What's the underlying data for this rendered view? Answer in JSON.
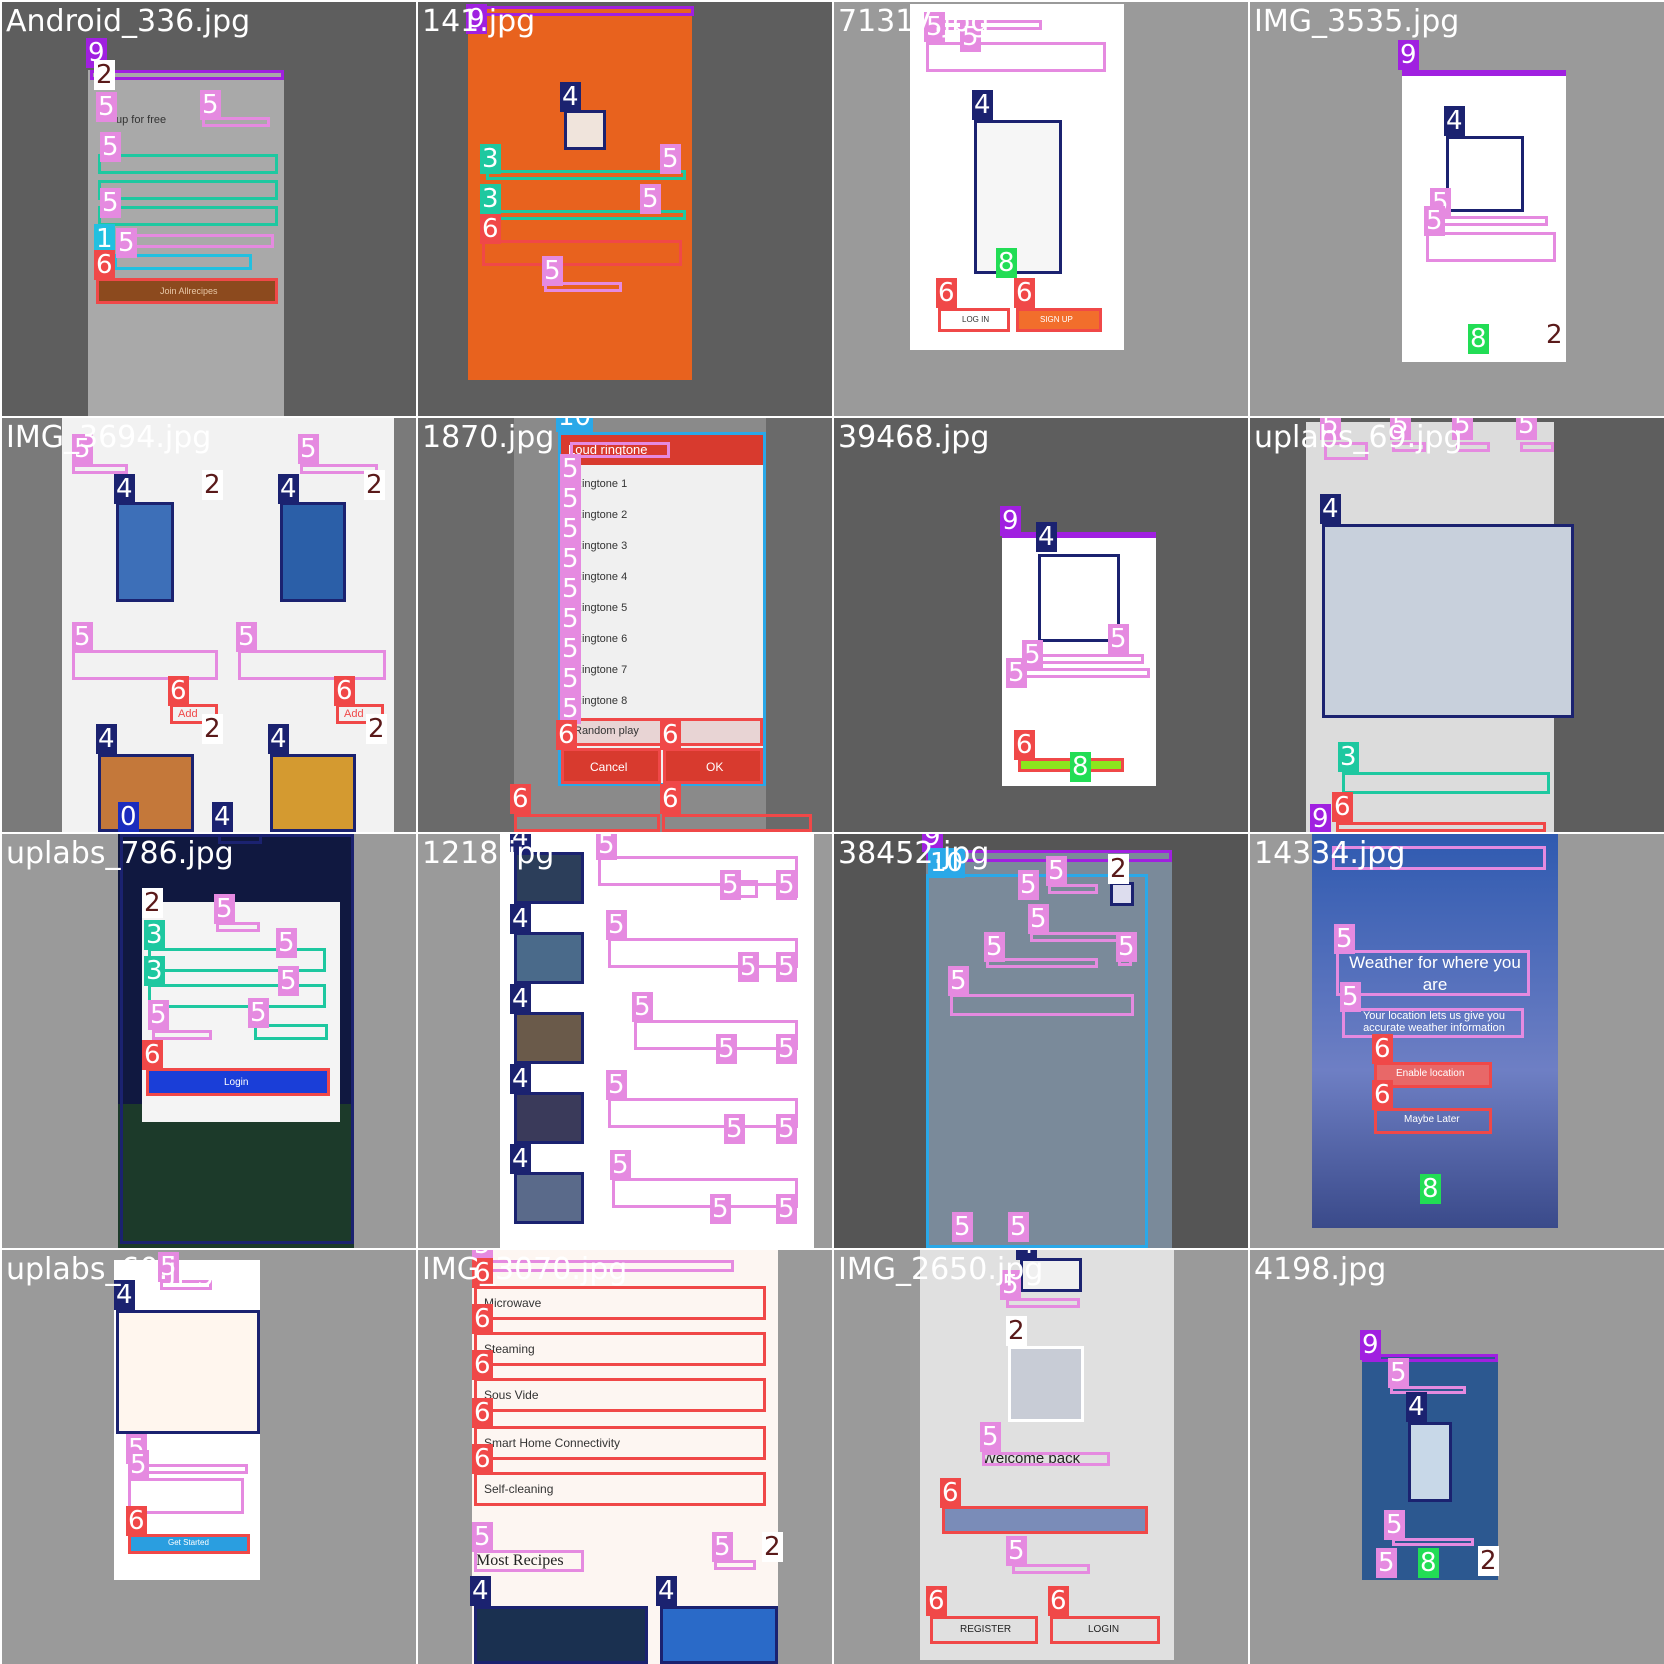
{
  "tiles": [
    {
      "title": "Android_336.jpg",
      "texts": [
        "up for free",
        "Join Allrecipes"
      ]
    },
    {
      "title": "141.jpg",
      "texts": []
    },
    {
      "title": "71317.jpg",
      "texts": [
        "LOG IN",
        "SIGN UP"
      ]
    },
    {
      "title": "IMG_3535.jpg",
      "texts": []
    },
    {
      "title": "IMG_3694.jpg",
      "texts": [
        "Add",
        "Add"
      ]
    },
    {
      "title": "1870.jpg",
      "texts": [
        "Loud ringtone",
        "Ringtone 1",
        "Ringtone 2",
        "Ringtone 3",
        "Ringtone 4",
        "Ringtone 5",
        "Ringtone 6",
        "Ringtone 7",
        "Ringtone 8",
        "Random play",
        "Cancel",
        "OK"
      ]
    },
    {
      "title": "39468.jpg",
      "texts": []
    },
    {
      "title": "uplabs_69.jpg",
      "texts": []
    },
    {
      "title": "uplabs_786.jpg",
      "texts": [
        "Login"
      ]
    },
    {
      "title": "1218.jpg",
      "texts": []
    },
    {
      "title": "38452.jpg",
      "texts": []
    },
    {
      "title": "14334.jpg",
      "texts": [
        "Weather for where you are",
        "Your location lets us give you accurate weather information",
        "Enable location",
        "Maybe Later"
      ]
    },
    {
      "title": "uplabs_60.jpg",
      "texts": [
        "Get Started"
      ]
    },
    {
      "title": "IMG_3070.jpg",
      "texts": [
        "Microwave",
        "Steaming",
        "Sous Vide",
        "Smart Home Connectivity",
        "Self-cleaning",
        "Most Recipes"
      ]
    },
    {
      "title": "IMG_2650.jpg",
      "texts": [
        "Welcome back",
        "REGISTER",
        "LOGIN"
      ]
    },
    {
      "title": "4198.jpg",
      "texts": []
    }
  ],
  "class_labels": [
    "0",
    "1",
    "2",
    "3",
    "4",
    "5",
    "6",
    "8",
    "9",
    "10"
  ]
}
